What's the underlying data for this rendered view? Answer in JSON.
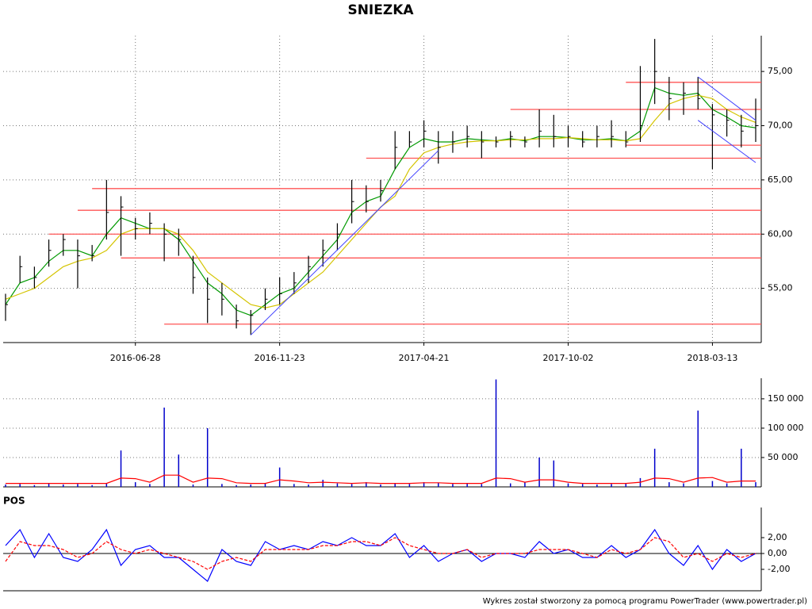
{
  "chart_data": [
    {
      "type": "ohlc",
      "title": "SNIEZKA",
      "x": [
        "2016-02-22",
        "2016-03-07",
        "2016-03-21",
        "2016-04-04",
        "2016-04-18",
        "2016-05-02",
        "2016-05-16",
        "2016-05-30",
        "2016-06-13",
        "2016-06-28",
        "2016-07-13",
        "2016-07-27",
        "2016-08-11",
        "2016-08-26",
        "2016-09-09",
        "2016-09-23",
        "2016-10-10",
        "2016-10-24",
        "2016-11-08",
        "2016-11-23",
        "2016-12-08",
        "2016-12-22",
        "2017-01-09",
        "2017-01-24",
        "2017-02-07",
        "2017-02-22",
        "2017-03-08",
        "2017-03-23",
        "2017-04-06",
        "2017-04-21",
        "2017-05-09",
        "2017-05-25",
        "2017-06-12",
        "2017-06-28",
        "2017-07-14",
        "2017-07-31",
        "2017-08-16",
        "2017-09-01",
        "2017-09-18",
        "2017-10-02",
        "2017-10-18",
        "2017-11-03",
        "2017-11-20",
        "2017-12-06",
        "2017-12-21",
        "2018-01-10",
        "2018-01-26",
        "2018-02-12",
        "2018-02-27",
        "2018-03-13",
        "2018-03-28",
        "2018-04-12",
        "2018-04-26"
      ],
      "xticks": [
        "2016-06-28",
        "2016-11-23",
        "2017-04-21",
        "2017-10-02",
        "2018-03-13"
      ],
      "high": [
        54.5,
        58,
        57,
        59.5,
        60,
        59.5,
        59,
        65,
        63.5,
        61.5,
        62,
        61,
        60.5,
        58,
        56,
        55.5,
        53.5,
        53,
        55,
        56,
        56.5,
        58,
        59.5,
        61,
        65,
        64.5,
        65,
        69.5,
        69.5,
        70.5,
        69.5,
        69.5,
        70,
        69.5,
        69,
        69.5,
        69,
        71.5,
        71,
        70,
        69.5,
        70,
        70.5,
        69.5,
        75.5,
        78,
        74.5,
        74,
        74.5,
        72,
        71.5,
        71,
        72.5
      ],
      "low": [
        52,
        55.5,
        55,
        57,
        58,
        55,
        57.5,
        59.5,
        58,
        59.5,
        60,
        57.5,
        58,
        54.5,
        51.8,
        52.5,
        51.3,
        50.7,
        53,
        53.5,
        54.5,
        55.5,
        57,
        58.5,
        61,
        62,
        63,
        66,
        68,
        68,
        66.5,
        67.5,
        68,
        67,
        68,
        68,
        68,
        68,
        68,
        68,
        68,
        68,
        68,
        68,
        68.5,
        72,
        70.5,
        71,
        71.5,
        66,
        69,
        68,
        68.5
      ],
      "close": [
        53.5,
        57,
        56,
        58.5,
        59.5,
        58,
        58,
        62,
        62.5,
        60.5,
        61,
        60,
        59.5,
        56,
        54,
        54,
        52,
        52.5,
        54,
        54.5,
        55.5,
        57,
        58.5,
        60,
        63,
        63,
        64,
        68,
        68.5,
        69.5,
        68,
        68.5,
        69,
        68.5,
        68.5,
        69,
        68.5,
        69.5,
        69,
        69,
        68.5,
        69,
        69,
        68.5,
        70,
        75,
        72.5,
        73,
        72.5,
        71,
        70.5,
        69.5,
        70
      ],
      "color": "#000000",
      "ylim": [
        50,
        78.3
      ],
      "yticks": [
        {
          "value": 55,
          "label": "55,00"
        },
        {
          "value": 60,
          "label": "60,00"
        },
        {
          "value": 65,
          "label": "65,00"
        },
        {
          "value": 70,
          "label": "70,00"
        },
        {
          "value": 75,
          "label": "75,00"
        }
      ],
      "grid": true,
      "series": [
        {
          "color": "#009900",
          "values": [
            53.5,
            55.5,
            56,
            57.5,
            58.5,
            58.5,
            58,
            60,
            61.5,
            61,
            60.5,
            60.5,
            59.5,
            57.5,
            55.5,
            54.5,
            53,
            52.5,
            53.5,
            54.5,
            55,
            56.5,
            58,
            59.5,
            62,
            63,
            63.5,
            66,
            68,
            68.8,
            68.5,
            68.5,
            68.8,
            68.7,
            68.6,
            68.8,
            68.6,
            69,
            69,
            68.9,
            68.7,
            68.7,
            68.8,
            68.6,
            69.5,
            73.5,
            73,
            72.8,
            73,
            71.5,
            70.8,
            70,
            69.8
          ]
        },
        {
          "color": "#d4c400",
          "values": [
            54,
            54.5,
            55,
            56,
            57,
            57.5,
            57.8,
            58.5,
            60,
            60.5,
            60.5,
            60.5,
            60,
            58.5,
            56.5,
            55.5,
            54.5,
            53.5,
            53.2,
            53.5,
            54.5,
            55.5,
            56.5,
            58,
            59.5,
            61,
            62.5,
            63.5,
            66,
            67.5,
            68,
            68.3,
            68.5,
            68.6,
            68.6,
            68.7,
            68.7,
            68.8,
            68.8,
            68.9,
            68.8,
            68.7,
            68.7,
            68.6,
            68.8,
            70.5,
            72,
            72.5,
            72.8,
            72.5,
            71.5,
            70.8,
            70.3
          ]
        }
      ],
      "hlines": [
        {
          "value": 74,
          "from": "2017-12-06"
        },
        {
          "value": 71.5,
          "from": "2017-07-31"
        },
        {
          "value": 68.2,
          "from": "2017-12-06"
        },
        {
          "value": 67,
          "from": "2017-02-22"
        },
        {
          "value": 64.2,
          "from": "2016-05-16"
        },
        {
          "value": 62.2,
          "from": "2016-05-02"
        },
        {
          "value": 60,
          "from": "2016-04-04"
        },
        {
          "value": 57.8,
          "from": "2016-06-13"
        },
        {
          "value": 51.7,
          "from": "2016-07-27"
        }
      ],
      "hline_color": "#ff5555",
      "trendlines": [
        [
          [
            "2016-10-24",
            50.7
          ],
          [
            "2017-05-09",
            67.7
          ]
        ],
        [
          [
            "2018-02-27",
            74.5
          ],
          [
            "2018-04-26",
            70.5
          ]
        ],
        [
          [
            "2018-02-27",
            70.5
          ],
          [
            "2018-04-26",
            66.6
          ]
        ]
      ],
      "trend_color": "#4040ff"
    },
    {
      "type": "volume",
      "values": [
        4000,
        5000,
        3000,
        6000,
        4000,
        5000,
        3000,
        6000,
        62000,
        8000,
        5000,
        135000,
        55000,
        4000,
        100000,
        5000,
        3000,
        4000,
        6000,
        33000,
        5000,
        4000,
        12000,
        6000,
        5000,
        8000,
        4000,
        6000,
        5000,
        8000,
        7000,
        5000,
        6000,
        5000,
        183000,
        6000,
        8000,
        50000,
        45000,
        6000,
        5000,
        4000,
        5000,
        6000,
        15000,
        65000,
        8000,
        6000,
        130000,
        10000,
        6000,
        65000,
        8000
      ],
      "color": "#0000cc",
      "average": [
        6000,
        6000,
        6000,
        6000,
        6000,
        6000,
        6000,
        6000,
        15000,
        14000,
        8000,
        20000,
        20000,
        8000,
        15000,
        14000,
        7000,
        6000,
        6000,
        12000,
        10000,
        7000,
        8000,
        7000,
        6000,
        7000,
        6000,
        6000,
        6000,
        7000,
        7000,
        6000,
        6000,
        6000,
        15000,
        14000,
        8000,
        12000,
        12000,
        8000,
        6000,
        6000,
        6000,
        6000,
        8000,
        15000,
        14000,
        8000,
        15000,
        16000,
        8000,
        10000,
        10000
      ],
      "average_color": "#ff0000",
      "ylim": [
        0,
        185000
      ],
      "yticks": [
        {
          "value": 50000,
          "label": "50 000"
        },
        {
          "value": 100000,
          "label": "100 000"
        },
        {
          "value": 150000,
          "label": "150 000"
        }
      ],
      "grid": true
    },
    {
      "type": "oscillator",
      "title": "POS",
      "series": [
        {
          "color": "#0000ff",
          "values": [
            1,
            3,
            -0.5,
            2.5,
            -0.5,
            -1,
            0.5,
            3,
            -1.5,
            0.5,
            1,
            -0.5,
            -0.5,
            -2,
            -3.5,
            0.5,
            -1,
            -1.5,
            1.5,
            0.5,
            1,
            0.5,
            1.5,
            1,
            2,
            1,
            1,
            2.5,
            -0.5,
            1,
            -1,
            0,
            0.5,
            -1,
            0,
            0,
            -0.5,
            1.5,
            0,
            0.5,
            -0.5,
            -0.5,
            1,
            -0.5,
            0.5,
            3,
            0,
            -1.5,
            1,
            -2,
            0.5,
            -1,
            0
          ]
        },
        {
          "color": "#ff0000",
          "dashed": true,
          "values": [
            -1,
            1.5,
            1,
            1,
            0.5,
            -0.5,
            0,
            1.5,
            0.5,
            0,
            0.5,
            0,
            -0.5,
            -1,
            -2,
            -1,
            -0.5,
            -1,
            0.5,
            0.5,
            0.5,
            0.5,
            1,
            1,
            1.5,
            1.5,
            1,
            2,
            1,
            0.5,
            0,
            0,
            0.5,
            -0.5,
            0,
            0,
            0,
            0.5,
            0.5,
            0.5,
            0,
            -0.5,
            0.5,
            0,
            0.5,
            2,
            1.5,
            -0.5,
            0,
            -1,
            0,
            -0.5,
            0
          ]
        }
      ],
      "ylim": [
        -4.7,
        5.8
      ],
      "yticks": [
        {
          "value": -2,
          "label": "-2,00"
        },
        {
          "value": 0,
          "label": "0,00"
        },
        {
          "value": 2,
          "label": "2,00"
        }
      ],
      "baseline": 0
    }
  ],
  "footer": "Wykres został stworzony za pomocą programu PowerTrader (www.powertrader.pl)"
}
